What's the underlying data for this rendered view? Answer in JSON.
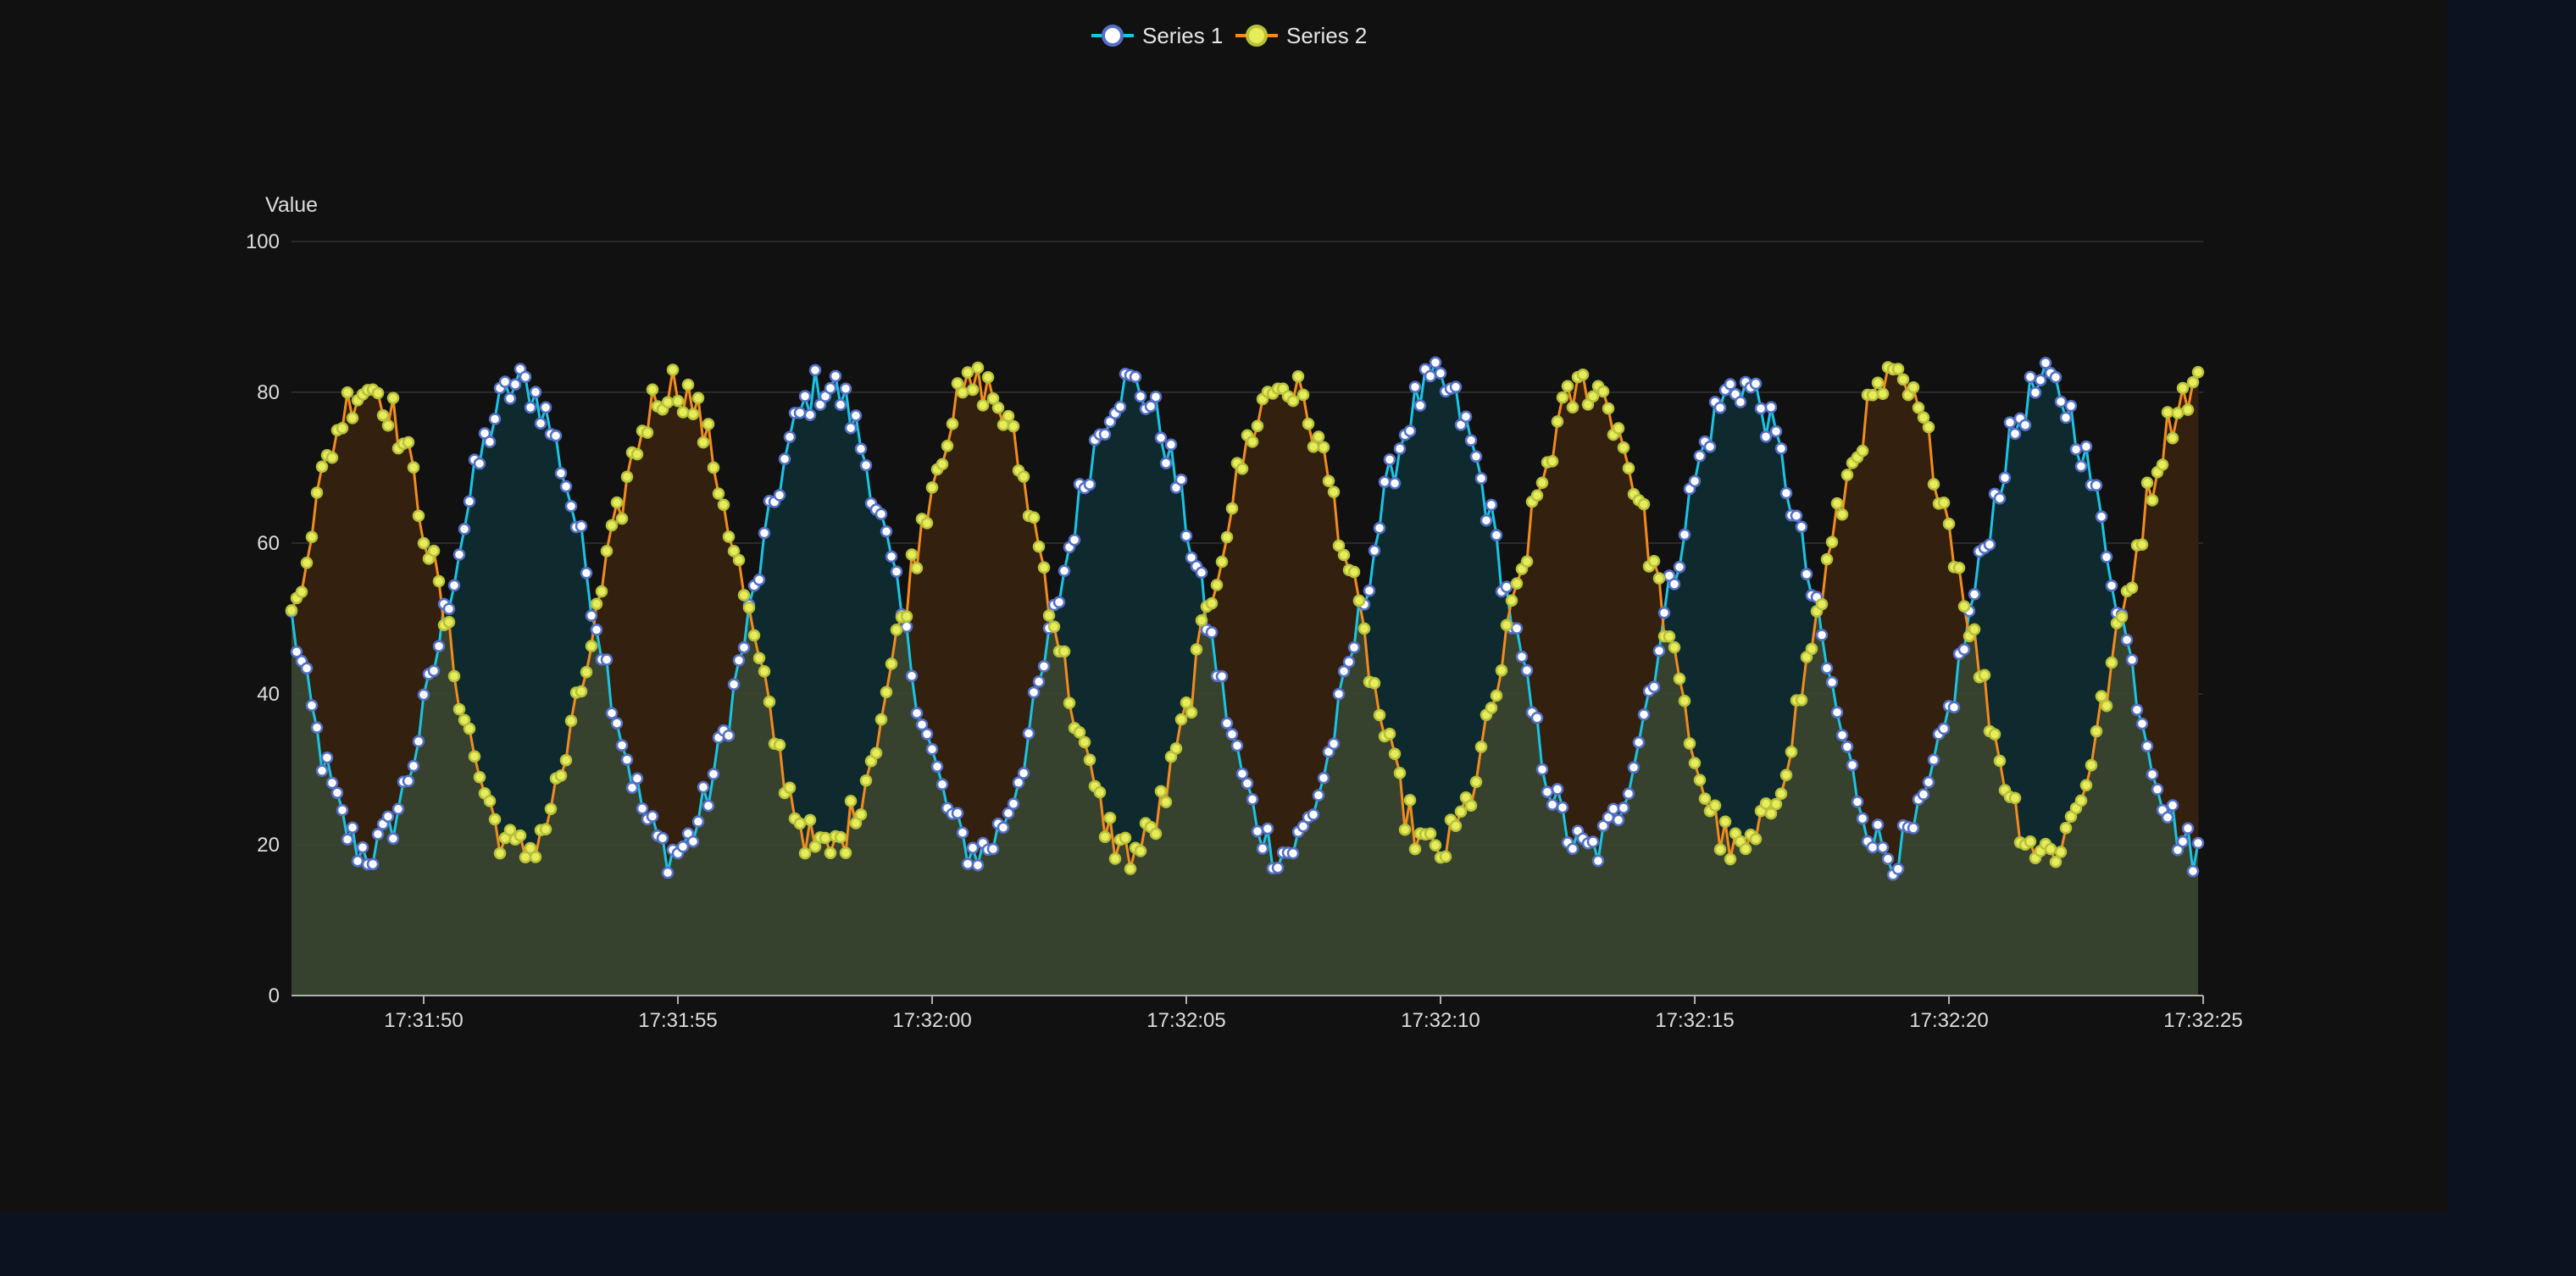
{
  "chart_data": {
    "type": "line",
    "title": "",
    "ylabel": "Value",
    "xlabel": "",
    "ylim": [
      0,
      100
    ],
    "y_ticks": [
      "0",
      "20",
      "40",
      "60",
      "80",
      "100"
    ],
    "x_range": [
      "17:31:47.4",
      "17:32:25"
    ],
    "x_ticks": [
      "17:31:50",
      "17:31:55",
      "17:32:00",
      "17:32:05",
      "17:32:10",
      "17:32:15",
      "17:32:20",
      "17:32:25"
    ],
    "grid": true,
    "legend_position": "top-center",
    "sample_interval_seconds": 0.1,
    "series": [
      {
        "name": "Series 1",
        "line_color": "#19c4e6",
        "marker_fill": "#ffffff",
        "marker_stroke": "#5470c6",
        "fill_color": "#0e2a2f",
        "base": 50,
        "amplitude": 31,
        "period_seconds": 6.0,
        "phase_start": "17:31:47.4",
        "noise": 3,
        "description": "Sinusoidal oscillation between ~17 and ~84, starting near 50 and falling first"
      },
      {
        "name": "Series 2",
        "line_color": "#f28c1e",
        "marker_fill": "#e8ec5a",
        "marker_stroke": "#b6c23a",
        "fill_color": "#33200f",
        "base": 50,
        "amplitude": 31,
        "period_seconds": 6.0,
        "phase_start": "17:31:47.4",
        "noise": 3,
        "description": "Sinusoidal oscillation between ~16 and ~84, starting near 50 and rising first (antiphase to Series 1)"
      }
    ]
  },
  "colors": {
    "panel_background": "#111111",
    "page_background": "#0d1220",
    "gridline": "#333333",
    "axis_line": "#b0b0b0",
    "base_area": "#3a4630"
  }
}
